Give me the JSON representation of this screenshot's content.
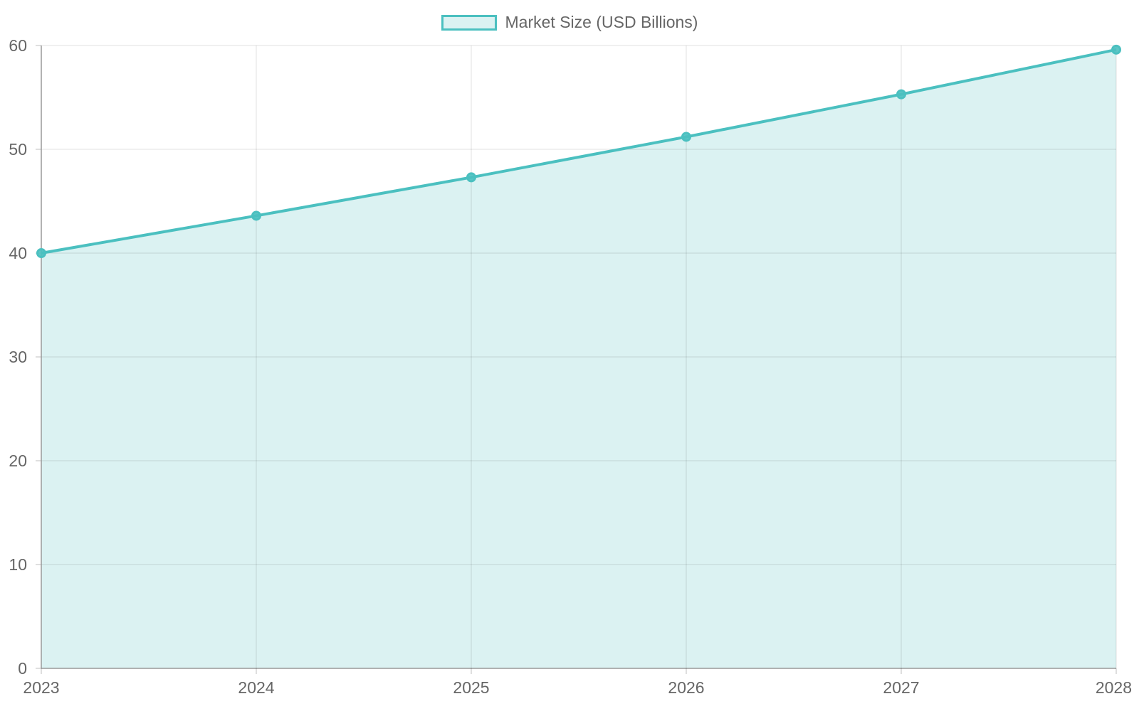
{
  "chart_data": {
    "type": "area",
    "title": "",
    "xlabel": "",
    "ylabel": "",
    "categories": [
      "2023",
      "2024",
      "2025",
      "2026",
      "2027",
      "2028"
    ],
    "series": [
      {
        "name": "Market Size (USD Billions)",
        "values": [
          40,
          43.6,
          47.3,
          51.2,
          55.3,
          59.6
        ],
        "color": "#4bc0c0",
        "fill": "rgba(75, 192, 192, 0.2)"
      }
    ],
    "ylim": [
      0,
      60
    ],
    "yticks": [
      "0",
      "10",
      "20",
      "30",
      "40",
      "50",
      "60"
    ],
    "grid": true,
    "legend": "top-center"
  }
}
